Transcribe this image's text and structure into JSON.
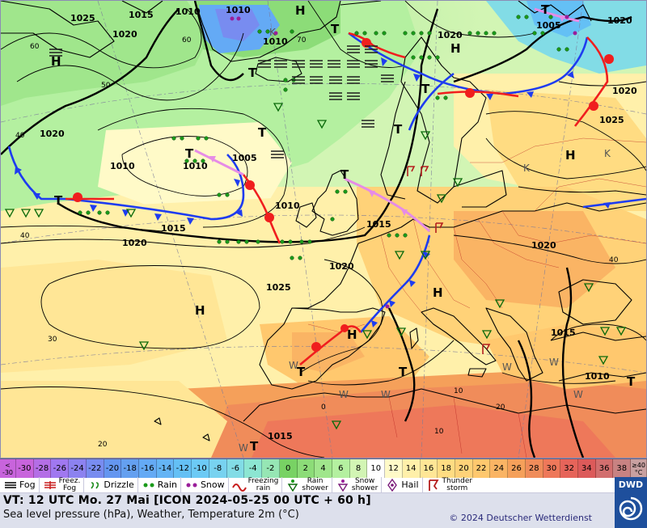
{
  "map": {
    "pressure_labels": [
      "1025",
      "1015",
      "1010",
      "1010",
      "1020",
      "1010",
      "1020",
      "1005",
      "1020",
      "1020",
      "1025",
      "1005",
      "1010",
      "1015",
      "1020",
      "1020",
      "1025",
      "1015",
      "1015",
      "1010",
      "1020",
      "1015",
      "1010",
      "1020",
      "1010"
    ],
    "pressure_centers": [
      "H",
      "H",
      "H",
      "H",
      "H",
      "H",
      "H",
      "T",
      "T",
      "T",
      "T",
      "T",
      "T",
      "T",
      "T",
      "T",
      "T",
      "T",
      "T",
      "T"
    ],
    "small_labels": [
      "60",
      "50",
      "40",
      "70",
      "60",
      "40",
      "30",
      "20",
      "0",
      "10",
      "20",
      "10",
      "40"
    ],
    "letters": [
      "K",
      "K",
      "K",
      "W",
      "W",
      "W",
      "W",
      "W",
      "W",
      "W"
    ]
  },
  "scale": {
    "first": [
      "<",
      "-30"
    ],
    "values": [
      "-30",
      "-28",
      "-26",
      "-24",
      "-22",
      "-20",
      "-18",
      "-16",
      "-14",
      "-12",
      "-10",
      "-8",
      "-6",
      "-4",
      "-2",
      "0",
      "2",
      "4",
      "6",
      "8",
      "10",
      "12",
      "14",
      "16",
      "18",
      "20",
      "22",
      "24",
      "26",
      "28",
      "30",
      "32",
      "34",
      "36",
      "38"
    ],
    "colors": [
      "#c864dc",
      "#b46ee6",
      "#a078f0",
      "#8c82f0",
      "#788cf0",
      "#6496f0",
      "#64a0f0",
      "#64aaf5",
      "#64b4f5",
      "#64c0f5",
      "#6ccaf5",
      "#78d2f0",
      "#82dce6",
      "#8ce6d2",
      "#96e6b4",
      "#78d264",
      "#8cdc78",
      "#a0e68c",
      "#b4f0a0",
      "#d2f5b4",
      "#ffffff",
      "#fffac8",
      "#fff0aa",
      "#ffe696",
      "#ffdc82",
      "#ffd278",
      "#ffc86e",
      "#fab464",
      "#f5a05a",
      "#f08c5a",
      "#ee785a",
      "#e6645a",
      "#dc5a5a",
      "#d26e6e",
      "#c88282"
    ],
    "last": [
      "≥40",
      "°C"
    ]
  },
  "legend": {
    "fog": "Fog",
    "freezing_fog": [
      "Freez.",
      "Fog"
    ],
    "drizzle": "Drizzle",
    "rain": "Rain",
    "snow": "Snow",
    "freezing_rain": [
      "Freezing",
      "rain"
    ],
    "rain_shower": [
      "Rain",
      "shower"
    ],
    "snow_shower": [
      "Snow",
      "shower"
    ],
    "hail": "Hail",
    "thunderstorm": [
      "Thunder",
      "storm"
    ]
  },
  "info": {
    "valid_time": "VT: 12 UTC Mo.  27 Mai [ICON 2024-05-25  00 UTC + 60 h]",
    "description": "Sea level pressure (hPa), Weather, Temperature 2m (°C)",
    "copyright": "© 2024 Deutscher Wetterdienst",
    "logo": "DWD"
  },
  "colors": {
    "cold_front": "#1e3cf0",
    "warm_front": "#f01e1e",
    "occlusion": "#e68ce6",
    "isobar": "#000000",
    "coast": "#000000"
  }
}
